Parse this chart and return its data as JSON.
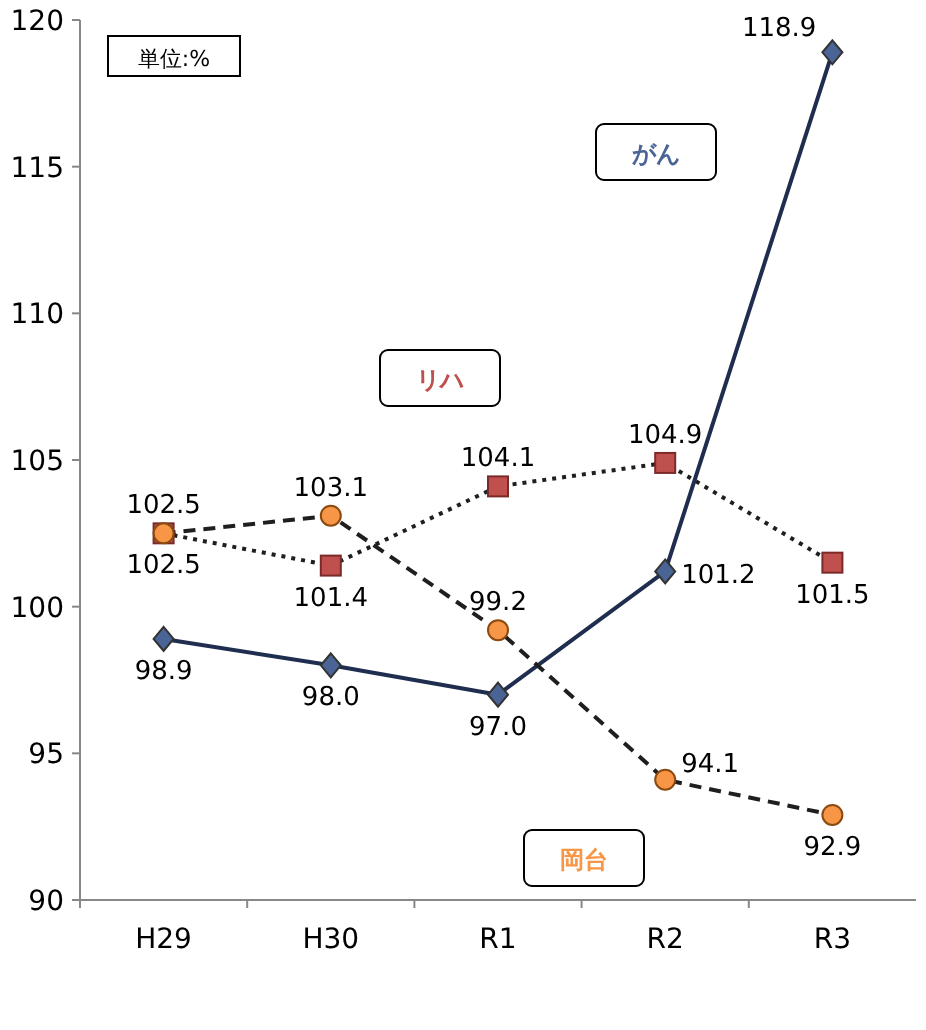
{
  "chart_data": {
    "type": "line",
    "categories": [
      "H29",
      "H30",
      "R1",
      "R2",
      "R3"
    ],
    "series": [
      {
        "name": "がん",
        "color": "#4a6496",
        "line_style": "solid",
        "marker": "diamond",
        "values": [
          98.9,
          98.0,
          97.0,
          101.2,
          118.9
        ],
        "value_labels": [
          "98.9",
          "98.0",
          "97.0",
          "101.2",
          "118.9"
        ]
      },
      {
        "name": "リハ",
        "color": "#c0504d",
        "line_style": "dotted",
        "marker": "square",
        "values": [
          102.5,
          101.4,
          104.1,
          104.9,
          101.5
        ],
        "value_labels": [
          "102.5",
          "101.4",
          "104.1",
          "104.9",
          "101.5"
        ]
      },
      {
        "name": "岡台",
        "color": "#f79646",
        "line_style": "dashed",
        "marker": "circle",
        "values": [
          102.5,
          103.1,
          99.2,
          94.1,
          92.9
        ],
        "value_labels": [
          "102.5",
          "103.1",
          "99.2",
          "94.1",
          "92.9"
        ]
      }
    ],
    "ylim": [
      90,
      120
    ],
    "yticks": [
      90,
      95,
      100,
      105,
      110,
      115,
      120
    ],
    "grid": false,
    "annotations": [
      "単位:%"
    ]
  }
}
